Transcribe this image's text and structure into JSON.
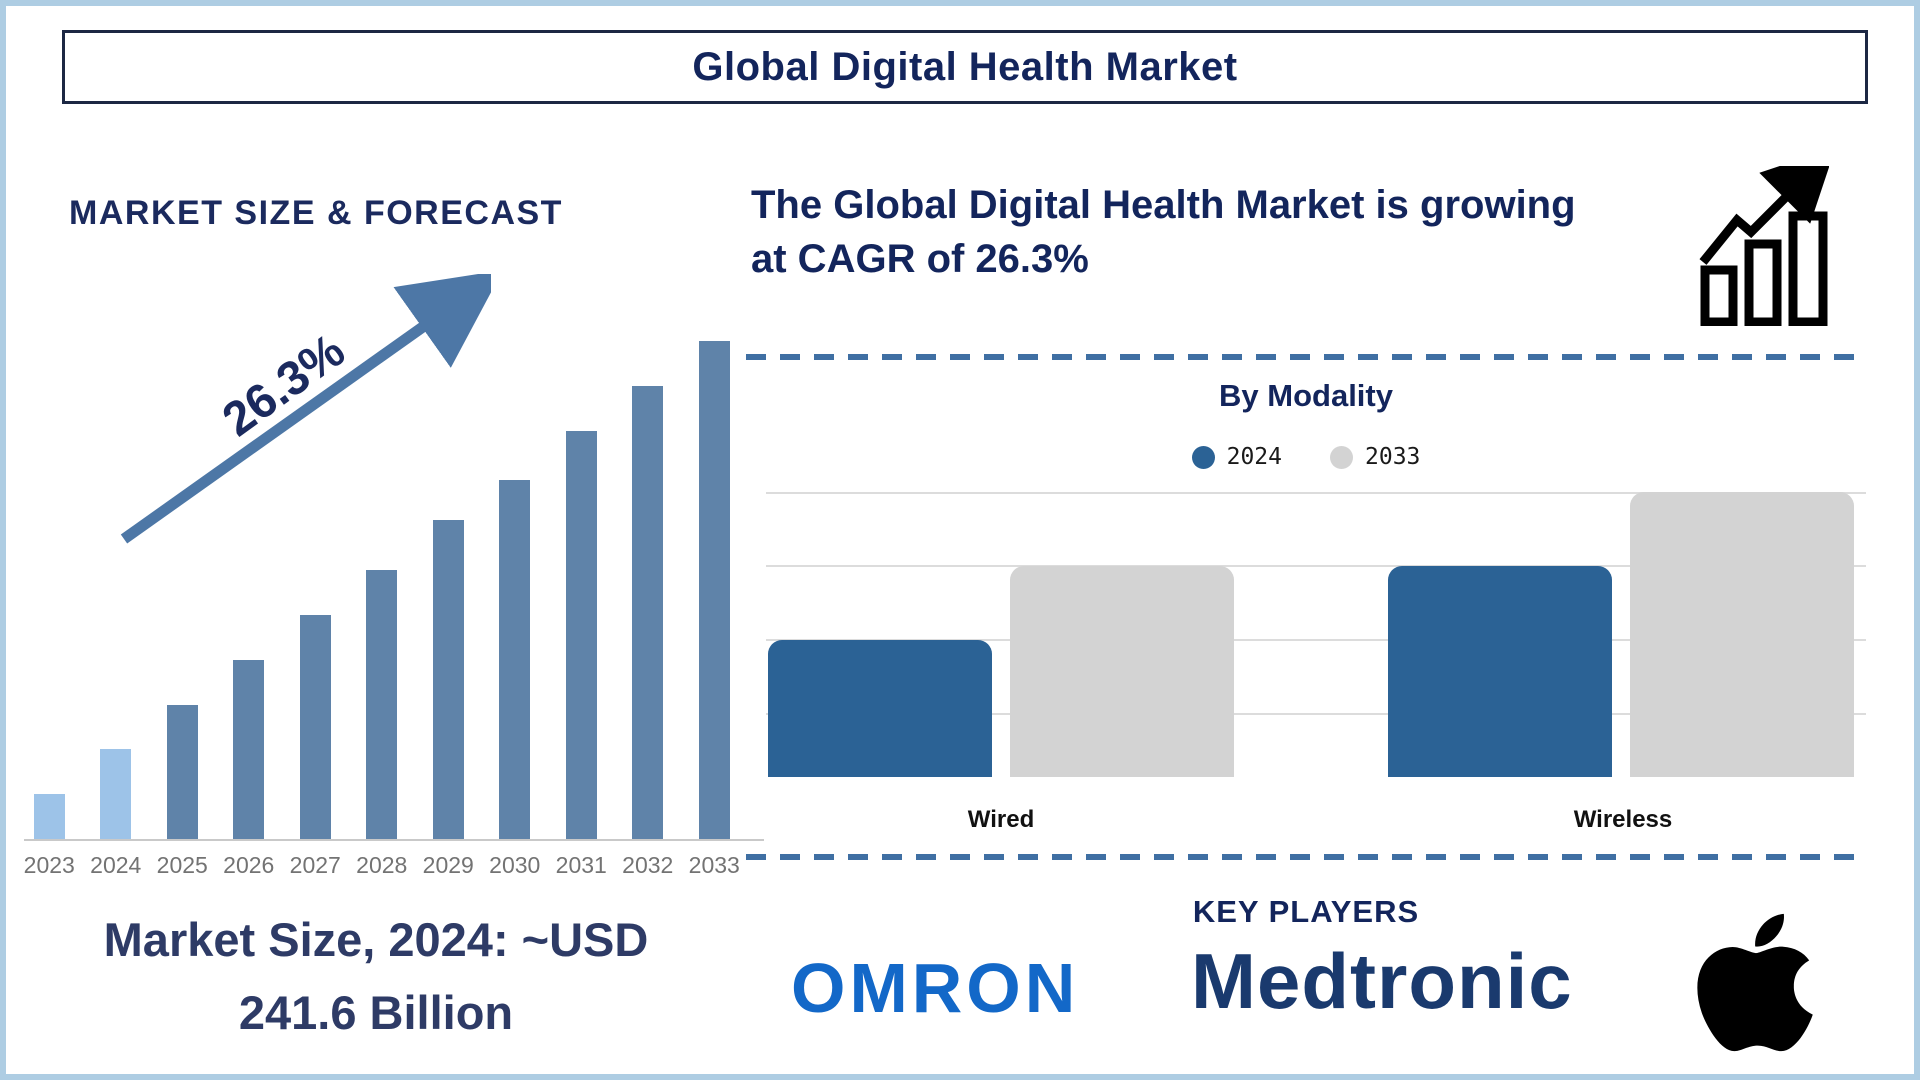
{
  "frame": {
    "title": "Global Digital Health Market"
  },
  "left_panel": {
    "heading": "MARKET SIZE & FORECAST",
    "growth_label": "26.3%",
    "market_size_line1": "Market Size, 2024: ~USD",
    "market_size_line2": "241.6 Billion"
  },
  "right_panel": {
    "growth_statement_line1": "The Global Digital Health Market is growing",
    "growth_statement_line2": "at CAGR of 26.3%",
    "growth_chart_icon": "bar-chart-rising-arrow-icon",
    "key_players": {
      "heading": "KEY PLAYERS",
      "players": [
        "OMRON",
        "Medtronic",
        "Apple"
      ]
    }
  },
  "chart_data": [
    {
      "type": "bar",
      "title": "MARKET SIZE & FORECAST",
      "categories": [
        "2023",
        "2024",
        "2025",
        "2026",
        "2027",
        "2028",
        "2029",
        "2030",
        "2031",
        "2032",
        "2033"
      ],
      "values": [
        9,
        18,
        27,
        36,
        45,
        54,
        64,
        72,
        82,
        91,
        100
      ],
      "values_note": "relative bar heights in % of the 2033 bar; the chart has no numeric value axis",
      "bar_colors": [
        "#9dc3e8",
        "#9dc3e8",
        "#5f83a9",
        "#5f83a9",
        "#5f83a9",
        "#5f83a9",
        "#5f83a9",
        "#5f83a9",
        "#5f83a9",
        "#5f83a9",
        "#5f83a9"
      ],
      "annotations": [
        "26.3% label on rising trend arrow"
      ],
      "xlabel": "",
      "ylabel": "",
      "grid": false
    },
    {
      "type": "bar",
      "title": "By Modality",
      "categories": [
        "Wired",
        "Wireless"
      ],
      "series": [
        {
          "name": "2024",
          "color": "#2b6295",
          "values": [
            48,
            74
          ]
        },
        {
          "name": "2033",
          "color": "#d3d3d3",
          "values": [
            74,
            100
          ]
        }
      ],
      "values_note": "relative bar heights in % of tallest bar; value axis unlabeled, 4 horizontal gridlines",
      "grid": true,
      "legend_position": "top-center",
      "xlabel": "",
      "ylabel": ""
    }
  ],
  "colors": {
    "navy_text": "#13255c",
    "frame_border": "#aecde3",
    "dashed_separator": "#3f6fa3",
    "trend_arrow": "#4d77a6",
    "axis_gray": "#c9c9c9",
    "year_label_gray": "#737373",
    "omron_blue": "#1368c8",
    "medtronic_navy": "#1a3a6e",
    "apple_black": "#000000"
  }
}
